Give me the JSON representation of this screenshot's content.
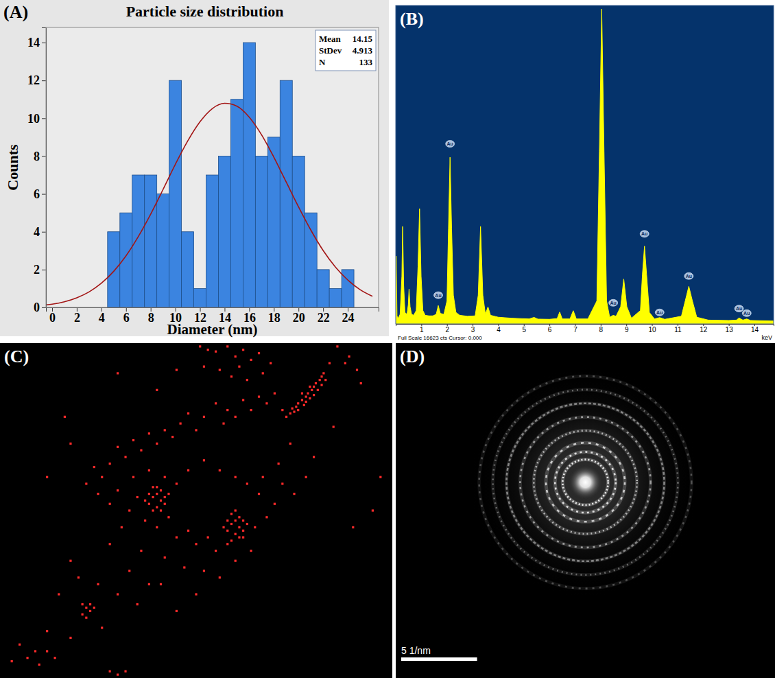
{
  "chart_data": [
    {
      "type": "histogram",
      "panel": "(A)",
      "title": "Particle size distribution",
      "x_label": "Diameter (nm)",
      "y_label": "Counts",
      "bins": [
        4.5,
        5.5,
        6.5,
        7.5,
        8.5,
        9.5,
        10.5,
        11.5,
        12.5,
        13.5,
        14.5,
        15.5,
        16.5,
        17.5,
        18.5,
        19.5,
        20.5,
        21.5,
        22.5,
        23.5,
        24.5
      ],
      "values": [
        4,
        5,
        7,
        7,
        6,
        12,
        4,
        1,
        7,
        8,
        11,
        14,
        8,
        9,
        12,
        8,
        5,
        2,
        1,
        2
      ],
      "color": "#3b84e0",
      "xlim": [
        -0.5,
        26.5
      ],
      "xticks": [
        0,
        2,
        4,
        6,
        8,
        10,
        12,
        14,
        16,
        18,
        20,
        22,
        24
      ],
      "ylim": [
        0,
        14.8
      ],
      "yticks": [
        0,
        2,
        4,
        6,
        8,
        10,
        12,
        14
      ],
      "fit": {
        "type": "line",
        "color": "#a31515",
        "x": [
          -0.5,
          0,
          1,
          2,
          3,
          4,
          5,
          6,
          7,
          8,
          9,
          10,
          11,
          12,
          13,
          14,
          15,
          16,
          17,
          18,
          19,
          20,
          21,
          22,
          23,
          24,
          25,
          26
        ],
        "values": [
          0.13,
          0.17,
          0.3,
          0.51,
          0.82,
          1.28,
          1.91,
          2.73,
          3.75,
          4.93,
          6.23,
          7.56,
          8.79,
          9.81,
          10.51,
          10.79,
          10.64,
          10.06,
          9.13,
          7.94,
          6.63,
          5.32,
          4.09,
          3.01,
          2.13,
          1.45,
          0.94,
          0.59
        ]
      },
      "stats": [
        {
          "label": "Mean",
          "value": 14.15
        },
        {
          "label": "StDev",
          "value": 4.913
        },
        {
          "label": "N",
          "value": 133
        }
      ],
      "legend": "top-right"
    },
    {
      "type": "area",
      "panel": "(B)",
      "x": [
        0,
        0.02,
        0.05,
        0.1,
        0.17,
        0.24,
        0.27,
        0.31,
        0.36,
        0.44,
        0.49,
        0.52,
        0.56,
        0.62,
        0.7,
        0.8,
        0.87,
        0.93,
        0.99,
        1.06,
        1.15,
        1.3,
        1.45,
        1.58,
        1.66,
        1.74,
        1.88,
        2.0,
        2.06,
        2.12,
        2.18,
        2.25,
        2.35,
        2.5,
        2.8,
        3.1,
        3.22,
        3.31,
        3.4,
        3.5,
        3.6,
        3.7,
        4.0,
        4.5,
        5.2,
        5.4,
        5.55,
        6.0,
        6.3,
        6.4,
        6.5,
        6.8,
        6.93,
        7.05,
        7.5,
        7.85,
        7.95,
        8.04,
        8.13,
        8.23,
        8.35,
        8.49,
        8.6,
        8.78,
        8.9,
        9.02,
        9.2,
        9.55,
        9.63,
        9.71,
        9.79,
        9.9,
        10.1,
        10.3,
        10.5,
        11.15,
        11.3,
        11.44,
        11.58,
        11.75,
        12.2,
        13.0,
        13.3,
        13.4,
        13.55,
        13.7,
        13.85,
        14.75
      ],
      "values": [
        200,
        3540,
        400,
        300,
        500,
        2500,
        5090,
        2000,
        600,
        500,
        1000,
        1820,
        900,
        500,
        450,
        700,
        3000,
        6020,
        2500,
        700,
        450,
        420,
        420,
        500,
        960,
        550,
        500,
        1200,
        5000,
        8700,
        5000,
        1500,
        600,
        450,
        400,
        420,
        1500,
        5090,
        1500,
        500,
        890,
        450,
        350,
        300,
        260,
        340,
        250,
        240,
        280,
        620,
        260,
        260,
        690,
        260,
        260,
        1200,
        9000,
        16440,
        9000,
        1200,
        350,
        450,
        400,
        900,
        2340,
        900,
        300,
        700,
        2600,
        4060,
        2600,
        600,
        260,
        330,
        240,
        400,
        1200,
        1960,
        1200,
        350,
        200,
        180,
        200,
        310,
        200,
        260,
        180,
        150
      ],
      "color": "#ffff00",
      "xlim": [
        0,
        14.75
      ],
      "xticks": [
        1,
        2,
        3,
        4,
        5,
        6,
        7,
        8,
        9,
        10,
        11,
        12,
        13,
        14
      ],
      "ylim": [
        0,
        16623
      ],
      "tick_labels": "x",
      "x_label": "keV",
      "status_text": "Full Scale 16623 cts Cursor: 0.000",
      "annotations": [
        {
          "text": "Au",
          "x": 1.66,
          "y": 1500
        },
        {
          "text": "Au",
          "x": 2.12,
          "y": 9400
        },
        {
          "text": "Au",
          "x": 8.49,
          "y": 1100
        },
        {
          "text": "Au",
          "x": 9.71,
          "y": 4700
        },
        {
          "text": "Au",
          "x": 10.3,
          "y": 600
        },
        {
          "text": "Au",
          "x": 11.44,
          "y": 2500
        },
        {
          "text": "Au",
          "x": 13.4,
          "y": 800
        },
        {
          "text": "Au",
          "x": 13.7,
          "y": 560
        }
      ]
    },
    {
      "type": "scatter",
      "panel": "(C)",
      "x": [
        73,
        74,
        74.5,
        75,
        75.5,
        76,
        76,
        77,
        77.5,
        78,
        78,
        78.5,
        79,
        79.5,
        80,
        80,
        80.5,
        81,
        81.5,
        82,
        82,
        82.5,
        83,
        79,
        77,
        51,
        53,
        55,
        58,
        60,
        62,
        64,
        66,
        52,
        56,
        59,
        61,
        63,
        67,
        69,
        88,
        89,
        86,
        84,
        91,
        70,
        68,
        66,
        72,
        64,
        62,
        60,
        58,
        55,
        57,
        52,
        50,
        48,
        46,
        44,
        42,
        40,
        38,
        36,
        34,
        32,
        30,
        28,
        26,
        24,
        22,
        25,
        28,
        30,
        33,
        35,
        37,
        40,
        43,
        45,
        48,
        50,
        53,
        55,
        58,
        62,
        65,
        68,
        70,
        66,
        63,
        60,
        56,
        52,
        48,
        45,
        42,
        38,
        34,
        31,
        28,
        36,
        42,
        47,
        52,
        56,
        60,
        64,
        67,
        71,
        74,
        72,
        75,
        78,
        80,
        38,
        39,
        40,
        41,
        40,
        39,
        41,
        42,
        42,
        38,
        40,
        43,
        37,
        41,
        39,
        58,
        59,
        60,
        61,
        60,
        59,
        61,
        62,
        60,
        58,
        62,
        61,
        59,
        63,
        57,
        21,
        22,
        23,
        22,
        21,
        23,
        24,
        20,
        25,
        30,
        35,
        38,
        33,
        18,
        15,
        12,
        9,
        7,
        10,
        5,
        3,
        12,
        14,
        28,
        30,
        32,
        18,
        26,
        45,
        50,
        41,
        85,
        92,
        95,
        97,
        90,
        16.5,
        18,
        12,
        30,
        40,
        45
      ],
      "values": [
        78,
        79,
        80.5,
        79.5,
        81,
        82,
        80,
        83,
        81.5,
        84,
        82.5,
        85,
        83.5,
        86,
        84.5,
        87,
        88,
        86,
        89,
        87.5,
        90,
        91,
        89,
        87,
        85,
        99,
        98,
        97.5,
        99,
        96,
        98,
        95,
        97,
        93,
        92,
        90,
        93,
        89,
        91,
        94,
        94,
        96,
        99,
        94,
        92,
        85,
        82,
        84,
        80,
        80,
        83,
        78,
        80,
        82,
        76,
        78,
        74,
        79,
        76,
        72,
        74,
        70,
        73,
        68,
        71,
        66,
        69,
        64,
        60,
        63,
        58,
        55,
        52,
        56,
        50,
        54,
        47,
        45,
        48,
        42,
        44,
        40,
        42,
        38,
        40,
        42,
        45,
        48,
        52,
        55,
        58,
        60,
        62,
        65,
        62,
        58,
        60,
        62,
        60,
        45,
        40,
        38,
        36,
        33,
        32,
        30,
        35,
        38,
        60,
        64,
        70,
        58,
        55,
        60,
        66,
        52,
        54,
        55,
        53,
        51,
        50,
        56,
        54,
        52,
        55,
        57,
        55,
        53,
        50,
        57,
        44,
        46,
        47,
        45,
        43,
        49,
        48,
        47,
        50,
        47,
        44,
        42,
        41,
        46,
        45,
        19,
        21,
        20,
        18,
        22,
        22,
        21,
        30,
        28,
        25,
        22,
        28,
        32,
        35,
        25,
        14,
        8,
        6,
        4,
        10,
        5,
        8,
        6,
        2,
        1,
        2,
        12,
        15,
        20,
        25,
        28,
        75,
        88,
        50,
        60,
        45,
        78,
        70,
        60,
        91,
        86,
        92
      ],
      "color": "#ff2a2a",
      "marker": "square",
      "xlim": [
        0,
        100
      ],
      "ylim": [
        0,
        100
      ],
      "tick_labels": false
    },
    {
      "type": "diffraction",
      "panel": "(D)",
      "rings": [
        1.5,
        2.0,
        2.6,
        3.4,
        4.3,
        5.2,
        6.1,
        7.0
      ],
      "xlim": [
        -12.5,
        12.5
      ],
      "ylim": [
        -12.8,
        9.1
      ],
      "tick_labels": false,
      "scale_bar": {
        "value": 5,
        "label": "5 1/nm"
      }
    }
  ]
}
